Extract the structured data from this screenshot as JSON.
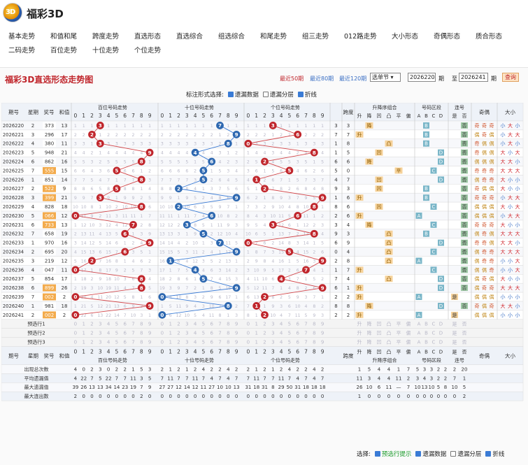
{
  "app": {
    "title": "福彩3D",
    "logo": "3D"
  },
  "nav": [
    "基本走势",
    "和值和尾",
    "跨度走势",
    "直选形态",
    "直选综合",
    "组选综合",
    "和尾走势",
    "组三走势",
    "012路走势",
    "大小形态",
    "奇偶形态",
    "质合形态",
    "二码走势",
    "百位走势",
    "十位走势",
    "个位走势"
  ],
  "nav_active": 3,
  "page_title": "福彩3D直选形态走势图",
  "range": {
    "last50": "最近50期",
    "last80": "最近80期",
    "last120": "最近120期",
    "select": "选单节",
    "from": "2026220",
    "from_unit": "期",
    "to_label": "至",
    "to": "2026241",
    "to_unit": "期",
    "query": "查询"
  },
  "options": {
    "label": "标注形式选择:",
    "items": [
      "遗漏数据",
      "遗漏分层",
      "折线"
    ],
    "checked": [
      true,
      false,
      true
    ]
  },
  "headers": {
    "issue": "期号",
    "week": "星期",
    "prize": "奖号",
    "sum": "和值",
    "bai": "百位号码走势",
    "shi": "十位号码走势",
    "ge": "个位号码走势",
    "sum_tail": "和尾",
    "span": "跨度",
    "updown": "升降序组合",
    "zone": "号码区段",
    "consec": "连号",
    "oddeven": "奇偶",
    "bigsmall": "大小"
  },
  "digits": [
    "0",
    "1",
    "2",
    "3",
    "4",
    "5",
    "6",
    "7",
    "8",
    "9"
  ],
  "updown_labels": [
    "升",
    "降",
    "凹",
    "凸",
    "平",
    "偏"
  ],
  "zone_labels": [
    "A",
    "B",
    "C",
    "D"
  ],
  "consec_labels": [
    "是",
    "否"
  ],
  "rows": [
    [
      "2026220",
      "2",
      "373",
      "13",
      "3",
      "3",
      "降",
      "B",
      "否",
      "奇奇奇",
      "小大小"
    ],
    [
      "2026221",
      "3",
      "296",
      "17",
      "7",
      "7",
      "升",
      "B",
      "否",
      "偶奇偶",
      "小大大"
    ],
    [
      "2026222",
      "4",
      "380",
      "11",
      "1",
      "8",
      "凸",
      "B",
      "否",
      "奇偶偶",
      "小大小"
    ],
    [
      "2026223",
      "5",
      "948",
      "21",
      "1",
      "5",
      "凹",
      "D",
      "否",
      "奇偶偶",
      "大小大"
    ],
    [
      "2026224",
      "6",
      "862",
      "16",
      "6",
      "6",
      "降",
      "D",
      "否",
      "偶偶偶",
      "大大小"
    ],
    [
      "2026225",
      "7",
      "555",
      "15",
      "5",
      "0",
      "平",
      "C",
      "否",
      "奇奇奇",
      "大大大"
    ],
    [
      "2026226",
      "1",
      "851",
      "14",
      "4",
      "7",
      "凹",
      "D",
      "否",
      "偶奇奇",
      "大小小"
    ],
    [
      "2026227",
      "2",
      "522",
      "9",
      "9",
      "3",
      "凹",
      "B",
      "否",
      "奇偶偶",
      "大小小"
    ],
    [
      "2026228",
      "3",
      "399",
      "21",
      "1",
      "6",
      "升",
      "B",
      "否",
      "奇奇奇",
      "小大大"
    ],
    [
      "2026229",
      "4",
      "828",
      "18",
      "8",
      "6",
      "凹",
      "C",
      "否",
      "偶偶偶",
      "大小大"
    ],
    [
      "2026230",
      "5",
      "066",
      "12",
      "2",
      "6",
      "升",
      "A",
      "否",
      "偶偶偶",
      "小大大"
    ],
    [
      "2026231",
      "6",
      "733",
      "13",
      "3",
      "4",
      "降",
      "C",
      "否",
      "奇奇奇",
      "大小小"
    ],
    [
      "2026232",
      "7",
      "658",
      "19",
      "9",
      "3",
      "凸",
      "B",
      "否",
      "偶奇偶",
      "大大大"
    ],
    [
      "2026233",
      "1",
      "970",
      "16",
      "6",
      "9",
      "凸",
      "D",
      "否",
      "奇奇偶",
      "大大小"
    ],
    [
      "2026234",
      "2",
      "695",
      "20",
      "0",
      "4",
      "凸",
      "C",
      "否",
      "偶奇奇",
      "大大大"
    ],
    [
      "2026235",
      "3",
      "219",
      "12",
      "2",
      "8",
      "凸",
      "A",
      "否",
      "偶奇奇",
      "小小大"
    ],
    [
      "2026236",
      "4",
      "047",
      "11",
      "1",
      "7",
      "升",
      "C",
      "否",
      "偶偶奇",
      "小小大"
    ],
    [
      "2026237",
      "5",
      "854",
      "17",
      "7",
      "4",
      "凸",
      "D",
      "否",
      "偶奇偶",
      "大小小"
    ],
    [
      "2026238",
      "6",
      "899",
      "26",
      "6",
      "1",
      "升",
      "D",
      "否",
      "偶奇奇",
      "大大大"
    ],
    [
      "2026239",
      "7",
      "002",
      "2",
      "2",
      "2",
      "升",
      "A",
      "是",
      "偶偶偶",
      "小小小"
    ],
    [
      "2026240",
      "1",
      "981",
      "18",
      "8",
      "8",
      "降",
      "D",
      "否",
      "奇偶奇",
      "大大小"
    ],
    [
      "2026241",
      "2",
      "002",
      "2",
      "2",
      "2",
      "升",
      "A",
      "是",
      "偶偶偶",
      "小小小"
    ]
  ],
  "preselect": [
    "预选行1",
    "预选行2",
    "预选行3"
  ],
  "stats_labels": [
    "出现总次数",
    "平均遗漏值",
    "最大遗漏值",
    "最大连出数"
  ],
  "stats": {
    "bai": [
      [
        "4",
        "0",
        "2",
        "3",
        "0",
        "2",
        "2",
        "1",
        "5",
        "3"
      ],
      [
        "4",
        "22",
        "7",
        "5",
        "22",
        "7",
        "7",
        "11",
        "3",
        "5"
      ],
      [
        "39",
        "26",
        "13",
        "13",
        "34",
        "14",
        "23",
        "19",
        "7",
        "9"
      ],
      [
        "2",
        "0",
        "0",
        "0",
        "0",
        "0",
        "0",
        "0",
        "2",
        "0"
      ]
    ],
    "shi": [
      [
        "2",
        "1",
        "2",
        "1",
        "2",
        "4",
        "2",
        "2",
        "4",
        "2"
      ],
      [
        "7",
        "11",
        "7",
        "7",
        "11",
        "7",
        "4",
        "7",
        "4",
        "7"
      ],
      [
        "27",
        "27",
        "12",
        "14",
        "12",
        "11",
        "27",
        "10",
        "10",
        "13"
      ],
      [
        "0",
        "0",
        "0",
        "0",
        "0",
        "0",
        "0",
        "0",
        "0",
        "0"
      ]
    ],
    "ge": [
      [
        "2",
        "1",
        "2",
        "1",
        "2",
        "4",
        "2",
        "2",
        "4",
        "2"
      ],
      [
        "7",
        "11",
        "7",
        "7",
        "11",
        "7",
        "4",
        "7",
        "4",
        "7"
      ],
      [
        "31",
        "18",
        "31",
        "8",
        "29",
        "50",
        "31",
        "18",
        "18",
        "18"
      ],
      [
        "0",
        "0",
        "0",
        "0",
        "0",
        "0",
        "0",
        "0",
        "0",
        "0"
      ]
    ],
    "updown": [
      [
        "1",
        "5",
        "4",
        "4",
        "1",
        "7"
      ],
      [
        "11",
        "3",
        "4",
        "4",
        "11",
        "2"
      ],
      [
        "26",
        "10",
        "6",
        "11",
        "—",
        "7"
      ],
      [
        "1",
        "0",
        "0",
        "0",
        "0",
        "0"
      ]
    ],
    "zone": [
      [
        "5",
        "3",
        "3",
        "2",
        "2"
      ],
      [
        "3",
        "4",
        "3",
        "2",
        "2"
      ],
      [
        "10",
        "13",
        "10",
        "5",
        "8"
      ],
      [
        "0",
        "0",
        "0",
        "0",
        "0"
      ]
    ],
    "consec": [
      [
        "2",
        "20"
      ],
      [
        "7",
        "1"
      ],
      [
        "10",
        "5"
      ],
      [
        "0",
        "2"
      ]
    ]
  },
  "footer": {
    "label": "选择:",
    "items": [
      "预选行提示",
      "遗漏数据",
      "遗漏分层",
      "折线"
    ],
    "checked": [
      true,
      true,
      false,
      true
    ]
  },
  "colors": {
    "red": "#c0262c",
    "blue": "#2e68b0",
    "orange": "#f0a020",
    "teal": "#7ab6c8",
    "line_red": "#d2464a",
    "line_blue": "#3a7bd5"
  }
}
